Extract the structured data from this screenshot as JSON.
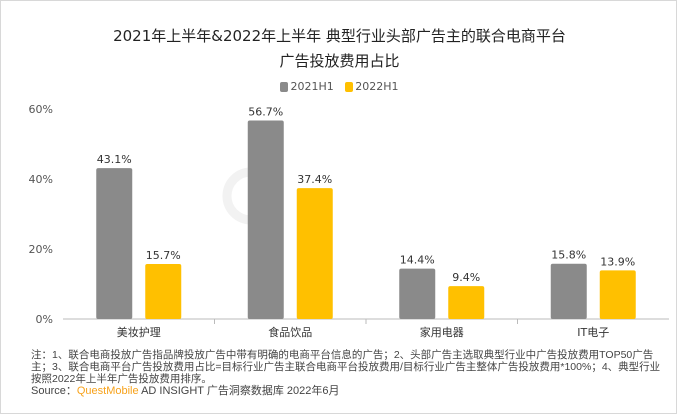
{
  "title_line1": "2021年上半年&2022年上半年 典型行业头部广告主的联合电商平台",
  "title_line2": "广告投放费用占比",
  "watermark": "QUEST MOBILE",
  "colors": {
    "2021H1": "#8a8a8a",
    "2022H1": "#ffc000"
  },
  "chart_data": {
    "type": "bar",
    "categories": [
      "美妆护理",
      "食品饮品",
      "家用电器",
      "IT电子"
    ],
    "series": [
      {
        "name": "2021H1",
        "values": [
          43.1,
          56.7,
          14.4,
          15.8
        ]
      },
      {
        "name": "2022H1",
        "values": [
          15.7,
          37.4,
          9.4,
          13.9
        ]
      }
    ],
    "data_labels": [
      [
        "43.1%",
        "56.7%",
        "14.4%",
        "15.8%"
      ],
      [
        "15.7%",
        "37.4%",
        "9.4%",
        "13.9%"
      ]
    ],
    "yticks": [
      "0%",
      "20%",
      "40%",
      "60%"
    ],
    "ylim": [
      0,
      60
    ],
    "legend_position": "top-center",
    "grid": false
  },
  "notes": "注：1、联合电商投放广告指品牌投放广告中带有明确的电商平台信息的广告；2、头部广告主选取典型行业中广告投放费用TOP50广告主；3、联合电商平台广告投放费用占比=目标行业广告主联合电商平台投放费用/目标行业广告主整体广告投放费用*100%；4、典型行业按照2022年上半年广告投放费用排序。",
  "source": {
    "prefix": "Source：",
    "brand": "QuestMobile",
    "text": " AD INSIGHT 广告洞察数据库 2022年6月"
  }
}
